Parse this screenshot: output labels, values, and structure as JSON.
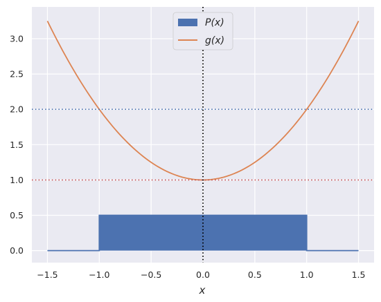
{
  "chart_data": {
    "type": "line",
    "xlabel": "x",
    "ylabel": "",
    "xlim": [
      -1.65,
      1.65
    ],
    "ylim": [
      -0.17,
      3.45
    ],
    "xticks": [
      -1.5,
      -1.0,
      -0.5,
      0.0,
      0.5,
      1.0,
      1.5
    ],
    "xtick_labels": [
      "−1.5",
      "−1.0",
      "−0.5",
      "0.0",
      "0.5",
      "1.0",
      "1.5"
    ],
    "yticks": [
      0.0,
      0.5,
      1.0,
      1.5,
      2.0,
      2.5,
      3.0
    ],
    "ytick_labels": [
      "0.0",
      "0.5",
      "1.0",
      "1.5",
      "2.0",
      "2.5",
      "3.0"
    ],
    "grid": true,
    "background": "#eaeaf2",
    "legend": {
      "placement": "top-center"
    },
    "series": [
      {
        "name": "P(x)",
        "kind": "filled-area",
        "color": "#4c72b0",
        "x": [
          -1.5,
          -1.0,
          -1.0,
          1.0,
          1.0,
          1.5
        ],
        "y": [
          0.0,
          0.0,
          0.5,
          0.5,
          0.0,
          0.0
        ]
      },
      {
        "name": "g(x)",
        "kind": "line",
        "color": "#dd8452",
        "formula": "1 + x^2",
        "x": [
          -1.5,
          -1.25,
          -1.0,
          -0.75,
          -0.5,
          -0.25,
          0.0,
          0.25,
          0.5,
          0.75,
          1.0,
          1.25,
          1.5
        ],
        "y": [
          3.25,
          2.5625,
          2.0,
          1.5625,
          1.25,
          1.0625,
          1.0,
          1.0625,
          1.25,
          1.5625,
          2.0,
          2.5625,
          3.25
        ]
      }
    ],
    "reference_lines": [
      {
        "orientation": "horizontal",
        "value": 2.0,
        "style": "dotted",
        "color": "#4c72b0"
      },
      {
        "orientation": "horizontal",
        "value": 1.0,
        "style": "dotted",
        "color": "#c44e52"
      },
      {
        "orientation": "vertical",
        "value": 0.0,
        "style": "dotted",
        "color": "#000000"
      }
    ]
  }
}
